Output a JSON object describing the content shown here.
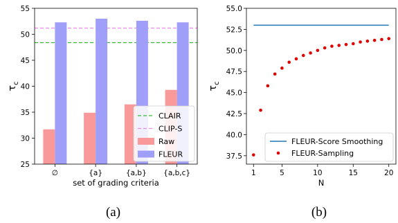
{
  "chart_data": [
    {
      "type": "bar",
      "caption": "(a)",
      "xlabel": "set of grading criteria",
      "ylabel": "τ_c",
      "ylim": [
        25,
        55
      ],
      "yticks": [
        25,
        30,
        35,
        40,
        45,
        50,
        55
      ],
      "categories": [
        "∅",
        "{a}",
        "{a,b}",
        "{a,b,c}"
      ],
      "series": [
        {
          "name": "Raw",
          "color": "#f9999a",
          "values": [
            31.7,
            34.9,
            36.5,
            39.3
          ]
        },
        {
          "name": "FLEUR",
          "color": "#9f9ef9",
          "values": [
            52.3,
            53.0,
            52.6,
            52.3
          ]
        }
      ],
      "reference_lines": [
        {
          "name": "CLAIR",
          "value": 48.4,
          "color": "#33bb33",
          "style": "dashed"
        },
        {
          "name": "CLIP-S",
          "value": 51.2,
          "color": "#ee88ee",
          "style": "dashed"
        }
      ],
      "grid": false,
      "legend": "bottom-right"
    },
    {
      "type": "line",
      "caption": "(b)",
      "xlabel": "N",
      "ylabel": "τ_c",
      "xlim": [
        0,
        21
      ],
      "ylim": [
        36.5,
        55
      ],
      "xticks": [
        1,
        5,
        10,
        15,
        20
      ],
      "yticks": [
        37.5,
        40.0,
        42.5,
        45.0,
        47.5,
        50.0,
        52.5,
        55.0
      ],
      "series": [
        {
          "name": "FLEUR-Score Smoothing",
          "kind": "line",
          "color": "#1f77b4",
          "x": [
            1,
            20
          ],
          "y": [
            53.0,
            53.0
          ]
        },
        {
          "name": "FLEUR-Sampling",
          "kind": "scatter",
          "color": "#dd0000",
          "x": [
            1,
            2,
            3,
            4,
            5,
            6,
            7,
            8,
            9,
            10,
            11,
            12,
            13,
            14,
            15,
            16,
            17,
            18,
            19,
            20
          ],
          "y": [
            37.6,
            42.9,
            45.8,
            47.2,
            47.9,
            48.6,
            49.0,
            49.4,
            49.7,
            50.0,
            50.3,
            50.5,
            50.6,
            50.7,
            50.8,
            51.0,
            51.1,
            51.2,
            51.3,
            51.4
          ]
        }
      ],
      "grid": false,
      "legend": "bottom-right"
    }
  ]
}
